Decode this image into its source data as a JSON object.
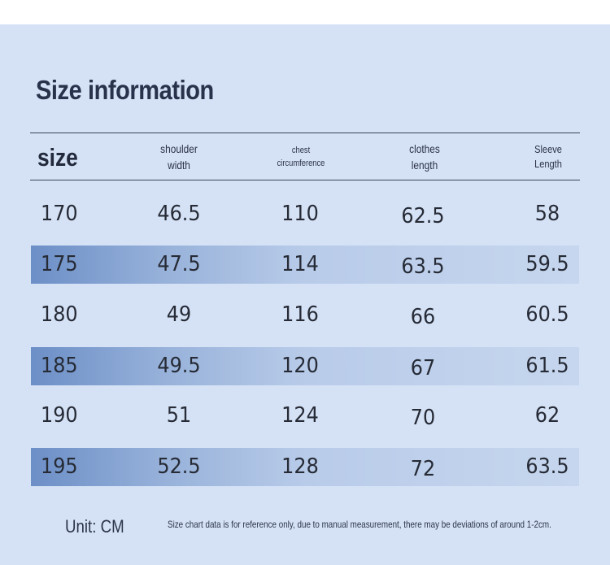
{
  "title": "Size information",
  "headers": {
    "size": "size",
    "shoulder": "shoulder\nwidth",
    "chest": "chest\ncircumference",
    "clothes": "clothes\nlength",
    "sleeve": "Sleeve\nLength"
  },
  "rows": [
    [
      "170",
      "46.5",
      "110",
      "62.5",
      "58"
    ],
    [
      "175",
      "47.5",
      "114",
      "63.5",
      "59.5"
    ],
    [
      "180",
      "49",
      "116",
      "66",
      "60.5"
    ],
    [
      "185",
      "49.5",
      "120",
      "67",
      "61.5"
    ],
    [
      "190",
      "51",
      "124",
      "70",
      "62"
    ],
    [
      "195",
      "52.5",
      "128",
      "72",
      "63.5"
    ]
  ],
  "unit": "Unit: CM",
  "note": "Size chart data is for reference only, due to manual measurement, there may be deviations of around 1-2cm."
}
